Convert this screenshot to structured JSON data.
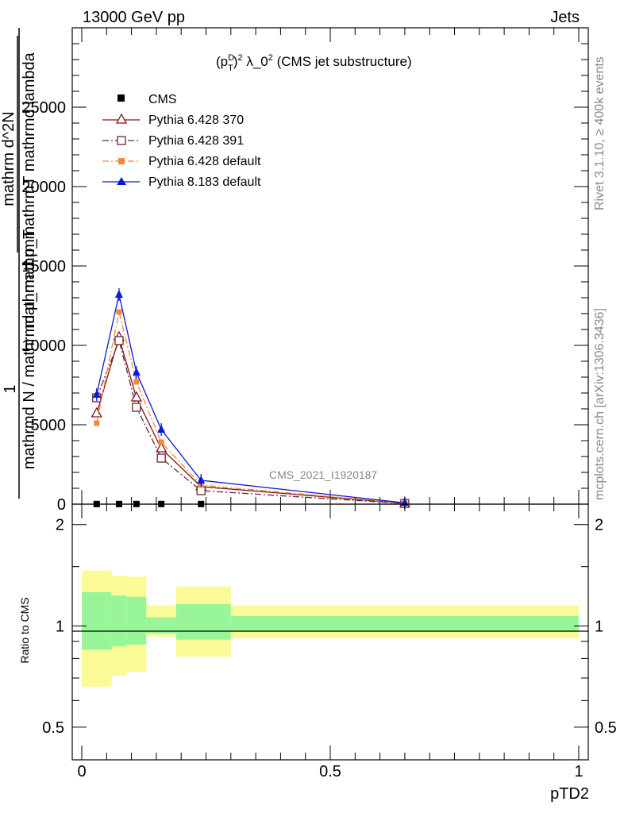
{
  "header": {
    "energy": "13000 GeV pp",
    "process": "Jets",
    "side_version": "Rivet 3.1.10, ≥ 400k events",
    "side_site": "mcplots.cern.ch [arXiv:1306.3436]"
  },
  "main_ylabel": {
    "numerator": "1",
    "denominator": "mathrmd N / mathrmd p_mathrmT",
    "right_num": "mathrm d^2N",
    "right_den": "mathrm d p_mathrmT mathrmd lambda"
  },
  "ratio_ylabel": "Ratio to CMS",
  "xlabel": "pTD2",
  "analysis_id": "CMS_2021_I1920187",
  "colors": {
    "cms": "#000000",
    "py6_370": "#7f1418",
    "py6_391": "#6b2630",
    "py6_default": "#f5873a",
    "py8_default": "#0b1ad6",
    "band_inner": "#98f598",
    "band_outer": "#fafa96"
  },
  "chart_data": [
    {
      "type": "line",
      "title_parts": {
        "p": "(p",
        "sup1": "D",
        "sub1": "T",
        "after": ")",
        "sup2": "2",
        "lambda": " λ_0",
        "sup3": "2",
        "rest": " (CMS jet substructure)"
      },
      "xlim": [
        0,
        1
      ],
      "ylim": [
        0,
        30000
      ],
      "y_ticks": [
        0,
        5000,
        10000,
        15000,
        20000,
        25000
      ],
      "y_tick_labels": [
        "0",
        "5000",
        "10000",
        "15000",
        "20000",
        "25000"
      ],
      "legend_position": "top-left",
      "series": [
        {
          "name": "CMS",
          "key": "cms",
          "marker": "square-filled",
          "x": [
            0.03,
            0.075,
            0.11,
            0.16,
            0.24
          ],
          "y": [
            10,
            10,
            10,
            10,
            10
          ]
        },
        {
          "name": "Pythia 6.428 370",
          "key": "py6_370",
          "marker": "triangle-open",
          "dash": "",
          "x": [
            0.03,
            0.075,
            0.11,
            0.16,
            0.24,
            0.65
          ],
          "y": [
            5700,
            10500,
            6700,
            3500,
            1100,
            50
          ]
        },
        {
          "name": "Pythia 6.428 391",
          "key": "py6_391",
          "marker": "square-open",
          "dash": "8,3,2,3",
          "x": [
            0.03,
            0.075,
            0.11,
            0.16,
            0.24,
            0.65
          ],
          "y": [
            6700,
            10300,
            6100,
            2900,
            850,
            40
          ]
        },
        {
          "name": "Pythia 6.428 default",
          "key": "py6_default",
          "marker": "square-filled",
          "dash": "8,3,2,3",
          "x": [
            0.03,
            0.075,
            0.11,
            0.16,
            0.24,
            0.65
          ],
          "y": [
            5100,
            12100,
            7700,
            3900,
            1200,
            60
          ]
        },
        {
          "name": "Pythia 8.183 default",
          "key": "py8_default",
          "marker": "triangle-filled",
          "dash": "",
          "x": [
            0.03,
            0.075,
            0.11,
            0.16,
            0.24,
            0.65
          ],
          "y": [
            6900,
            13200,
            8300,
            4700,
            1500,
            80
          ]
        }
      ]
    },
    {
      "type": "area",
      "ylabel": "Ratio to CMS",
      "xlabel": "pTD2",
      "xlim": [
        0,
        1
      ],
      "ylim": [
        0.4,
        2.3
      ],
      "scale": "log",
      "y_ticks": [
        0.5,
        1,
        2
      ],
      "y_tick_labels": [
        "0.5",
        "1",
        "2"
      ],
      "x_ticks": [
        0,
        0.5,
        1
      ],
      "x_tick_labels": [
        "0",
        "0.5",
        "1"
      ],
      "bins": [
        {
          "lo": 0.0,
          "hi": 0.06,
          "inner": [
            0.85,
            1.26
          ],
          "outer": [
            0.66,
            1.46
          ]
        },
        {
          "lo": 0.06,
          "hi": 0.09,
          "inner": [
            0.87,
            1.23
          ],
          "outer": [
            0.71,
            1.41
          ]
        },
        {
          "lo": 0.09,
          "hi": 0.13,
          "inner": [
            0.88,
            1.22
          ],
          "outer": [
            0.73,
            1.4
          ]
        },
        {
          "lo": 0.13,
          "hi": 0.19,
          "inner": [
            0.95,
            1.06
          ],
          "outer": [
            0.93,
            1.15
          ]
        },
        {
          "lo": 0.19,
          "hi": 0.3,
          "inner": [
            0.91,
            1.16
          ],
          "outer": [
            0.81,
            1.31
          ]
        },
        {
          "lo": 0.3,
          "hi": 1.0,
          "inner": [
            0.96,
            1.07
          ],
          "outer": [
            0.92,
            1.15
          ]
        }
      ]
    }
  ]
}
